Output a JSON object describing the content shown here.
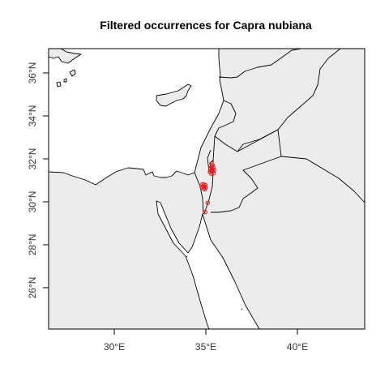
{
  "title": "Filtered occurrences for Capra nubiana",
  "map": {
    "lon_range": [
      26.5,
      43.7
    ],
    "lat_range": [
      24.1,
      37.2
    ],
    "x_ticks": [
      "30°E",
      "35°E",
      "40°E"
    ],
    "y_ticks": [
      "26°N",
      "28°N",
      "30°N",
      "32°N",
      "34°N",
      "36°N"
    ],
    "land_color": "#ececec",
    "sea_color": "#ffffff",
    "point_color": "#e41a1c"
  },
  "occurrences": [
    {
      "lon": 35.31,
      "lat": 31.78
    },
    {
      "lon": 35.38,
      "lat": 31.7
    },
    {
      "lon": 35.3,
      "lat": 31.62
    },
    {
      "lon": 35.42,
      "lat": 31.58
    },
    {
      "lon": 35.25,
      "lat": 31.55
    },
    {
      "lon": 35.35,
      "lat": 31.5
    },
    {
      "lon": 35.45,
      "lat": 31.48
    },
    {
      "lon": 35.28,
      "lat": 31.45
    },
    {
      "lon": 35.38,
      "lat": 31.4
    },
    {
      "lon": 35.22,
      "lat": 31.38
    },
    {
      "lon": 35.42,
      "lat": 31.33
    },
    {
      "lon": 35.3,
      "lat": 31.3
    },
    {
      "lon": 34.82,
      "lat": 30.82
    },
    {
      "lon": 34.9,
      "lat": 30.8
    },
    {
      "lon": 34.97,
      "lat": 30.78
    },
    {
      "lon": 34.85,
      "lat": 30.72
    },
    {
      "lon": 34.93,
      "lat": 30.7
    },
    {
      "lon": 34.78,
      "lat": 30.68
    },
    {
      "lon": 35.0,
      "lat": 30.66
    },
    {
      "lon": 34.88,
      "lat": 30.62
    },
    {
      "lon": 34.95,
      "lat": 30.58
    },
    {
      "lon": 35.1,
      "lat": 29.95
    },
    {
      "lon": 34.97,
      "lat": 29.52
    }
  ]
}
